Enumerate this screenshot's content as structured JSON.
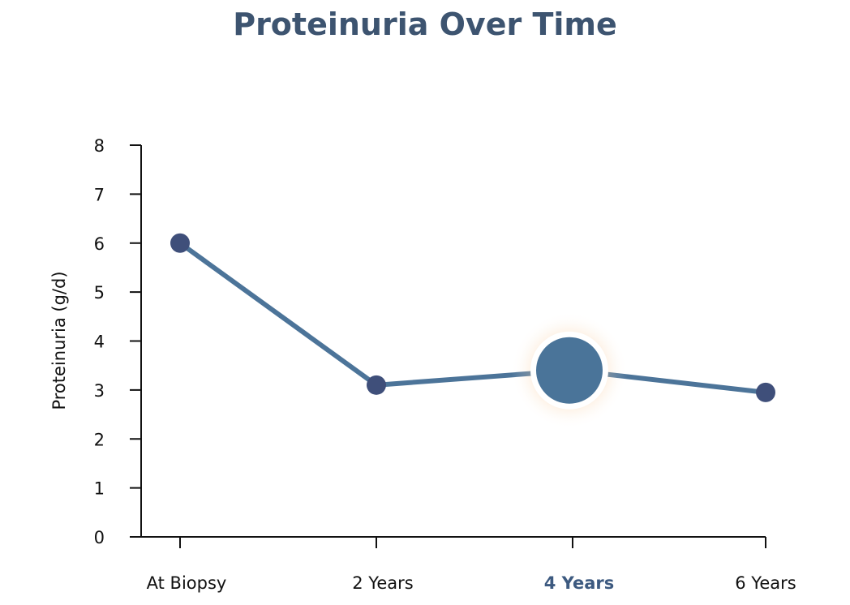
{
  "chart_data": {
    "type": "line",
    "title": "Proteinuria Over Time",
    "ylabel": "Proteinuria (g/d)",
    "xlabel": "",
    "categories": [
      "At Biopsy",
      "2 Years",
      "4 Years",
      "6 Years"
    ],
    "yticks": [
      "0",
      "1",
      "2",
      "3",
      "4",
      "5",
      "6",
      "7",
      "8"
    ],
    "ylim": [
      0,
      8
    ],
    "grid": false,
    "series": [
      {
        "values": [
          6.0,
          3.1,
          3.4,
          2.95
        ]
      }
    ],
    "highlight_index": 2,
    "colors": {
      "line": "#4c7499",
      "marker": "#3f4f7a",
      "highlight_marker": "#4a7499",
      "highlight_glow": "#f4b26a",
      "title": "#3d5470",
      "highlight_tick": "#3d5a80"
    }
  }
}
